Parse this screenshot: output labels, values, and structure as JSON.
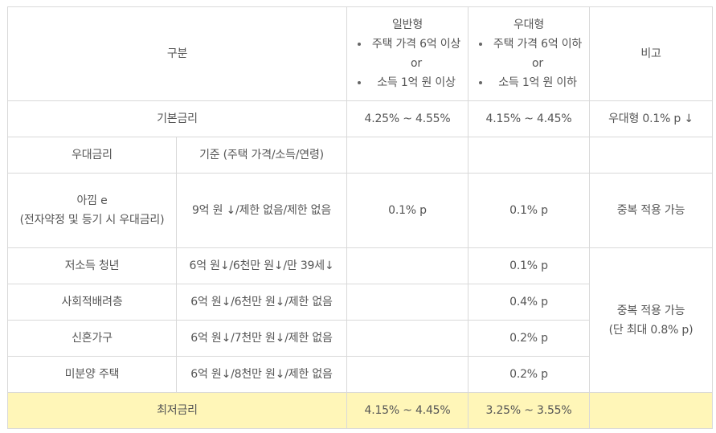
{
  "table": {
    "header": {
      "category": "구분",
      "general": {
        "title": "일반형",
        "bullets": [
          "주택 가격 6억 이상 or",
          "소득 1억 원 이상"
        ]
      },
      "preferred": {
        "title": "우대형",
        "bullets": [
          "주택 가격 6억 이하 or",
          "소득 1억 원 이하"
        ]
      },
      "note": "비고"
    },
    "base_rate": {
      "label": "기본금리",
      "general": "4.25% ~ 4.55%",
      "preferred": "4.15% ~ 4.45%",
      "note": "우대형 0.1% p ↓"
    },
    "preferential_header": {
      "label": "우대금리",
      "criteria": "기준 (주택 가격/소득/연령)"
    },
    "aggim": {
      "label_line1": "아낌 e",
      "label_line2": "(전자약정 및 등기 시 우대금리)",
      "criteria": "9억 원 ↓/제한 없음/제한 없음",
      "general": "0.1% p",
      "preferred": "0.1% p",
      "note": "중복 적용 가능"
    },
    "items": [
      {
        "label": "저소득 청년",
        "criteria": "6억 원↓/6천만 원↓/만 39세↓",
        "preferred": "0.1% p"
      },
      {
        "label": "사회적배려층",
        "criteria": "6억 원↓/6천만 원↓/제한 없음",
        "preferred": "0.4% p"
      },
      {
        "label": "신혼가구",
        "criteria": "6억 원↓/7천만 원↓/제한 없음",
        "preferred": "0.2% p"
      },
      {
        "label": "미분양 주택",
        "criteria": "6억 원↓/8천만 원↓/제한 없음",
        "preferred": "0.2% p"
      }
    ],
    "items_note_line1": "중복 적용 가능",
    "items_note_line2": "(단 최대 0.8% p)",
    "lowest_rate": {
      "label": "최저금리",
      "general": "4.15% ~ 4.45%",
      "preferred": "3.25% ~ 3.55%",
      "note": ""
    },
    "highlight_color": "#fff6b8",
    "border_color": "#d9d9d9"
  }
}
